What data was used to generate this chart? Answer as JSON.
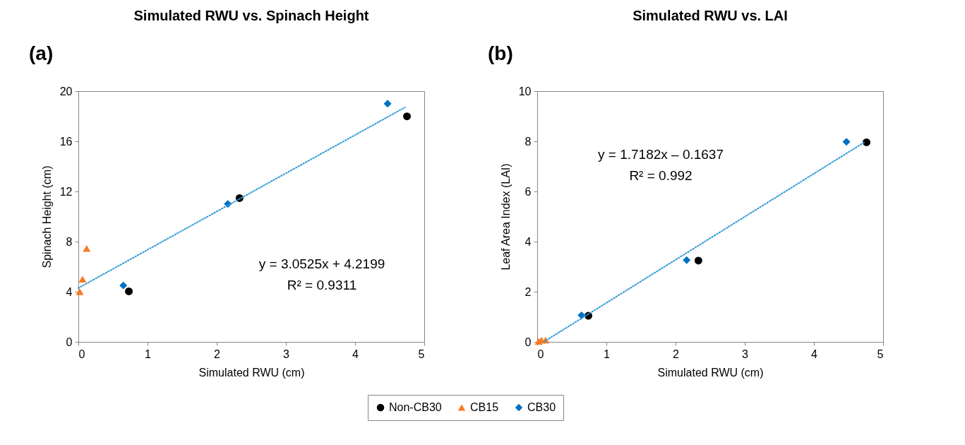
{
  "chart_data": [
    {
      "type": "scatter",
      "title": "Simulated RWU vs. Spinach Height",
      "xlabel": "Simulated RWU (cm)",
      "ylabel": "Spinach Height (cm)",
      "xlim": [
        0,
        5
      ],
      "xticks": [
        0,
        1,
        2,
        3,
        4,
        5
      ],
      "ylim": [
        0,
        20
      ],
      "yticks": [
        0,
        4,
        8,
        12,
        16,
        20
      ],
      "grid": false,
      "legend": "bottom",
      "series": [
        {
          "name": "Non-CB30",
          "color": "#000000",
          "marker": "circle",
          "x": [
            0.73,
            2.33,
            4.75
          ],
          "values": [
            4.03,
            11.47,
            17.99
          ]
        },
        {
          "name": "CB15",
          "color": "#f97a21",
          "marker": "triangle",
          "x": [
            0.02,
            0.06,
            0.12
          ],
          "values": [
            4.0,
            5.0,
            7.45
          ]
        },
        {
          "name": "CB30",
          "color": "#0070c0",
          "marker": "diamond",
          "x": [
            0.65,
            2.16,
            4.47
          ],
          "values": [
            4.5,
            11.0,
            19.0
          ]
        },
        {
          "type": "line",
          "color": "#2e9bd6",
          "line_style": "dotted",
          "x": [
            0,
            4.72
          ],
          "values": [
            4.29,
            18.7
          ]
        }
      ],
      "annotations": [
        "(a)",
        "y = 3.0525x + 4.2199",
        "R² = 0.9311"
      ]
    },
    {
      "type": "scatter",
      "title": "Simulated RWU vs. LAI",
      "xlabel": "Simulated RWU (cm)",
      "ylabel": "Leaf Area Index (LAI)",
      "xlim": [
        0,
        5
      ],
      "xticks": [
        0,
        1,
        2,
        3,
        4,
        5
      ],
      "ylim": [
        0,
        10
      ],
      "yticks": [
        0,
        2,
        4,
        6,
        8,
        10
      ],
      "grid": false,
      "legend": "bottom",
      "series": [
        {
          "name": "Non-CB30",
          "color": "#000000",
          "marker": "circle",
          "x": [
            0.74,
            2.33,
            4.76
          ],
          "values": [
            1.04,
            3.24,
            7.96
          ]
        },
        {
          "name": "CB15",
          "color": "#f97a21",
          "marker": "triangle",
          "x": [
            0.02,
            0.06,
            0.12
          ],
          "values": [
            0.02,
            0.07,
            0.07
          ]
        },
        {
          "name": "CB30",
          "color": "#0070c0",
          "marker": "diamond",
          "x": [
            0.64,
            2.16,
            4.47
          ],
          "values": [
            1.06,
            3.26,
            7.98
          ]
        },
        {
          "type": "line",
          "color": "#2e9bd6",
          "line_style": "dotted",
          "x": [
            0.1,
            4.74
          ],
          "values": [
            0.01,
            7.98
          ]
        }
      ],
      "annotations": [
        "(b)",
        "y = 1.7182x – 0.1637",
        "R² = 0.992"
      ]
    }
  ]
}
